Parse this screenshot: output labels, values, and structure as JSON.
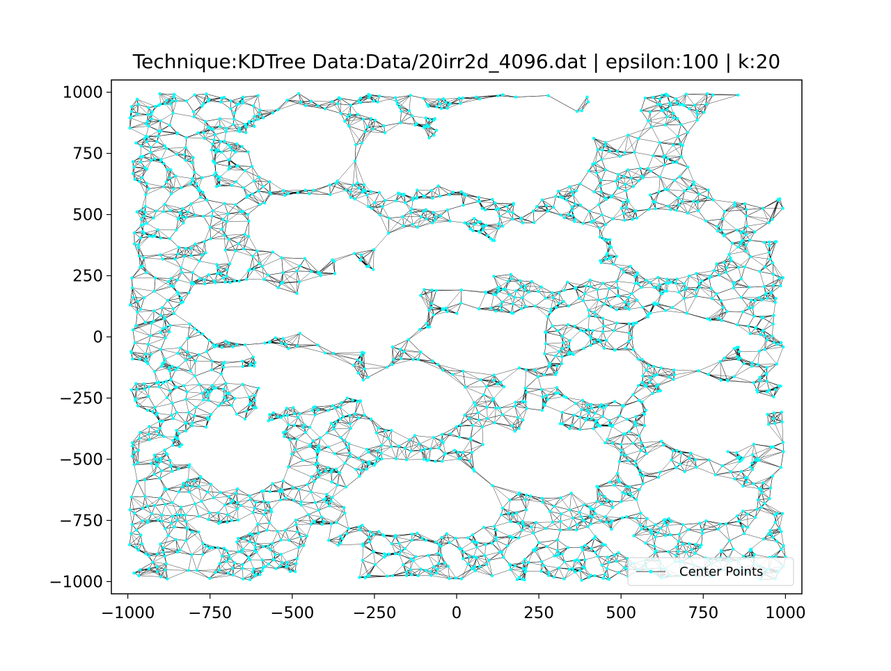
{
  "chart_data": {
    "type": "scatter",
    "title": "Technique:KDTree Data:Data/20irr2d_4096.dat | epsilon:100 | k:20",
    "xlabel": "",
    "ylabel": "",
    "xlim": [
      -1050,
      1050
    ],
    "ylim": [
      -1050,
      1050
    ],
    "xticks": [
      -1000,
      -750,
      -500,
      -250,
      0,
      250,
      500,
      750,
      1000
    ],
    "yticks": [
      -1000,
      -750,
      -500,
      -250,
      0,
      250,
      500,
      750,
      1000
    ],
    "xtick_labels": [
      "−1000",
      "−750",
      "−500",
      "−250",
      "0",
      "250",
      "500",
      "750",
      "1000"
    ],
    "ytick_labels": [
      "−1000",
      "−750",
      "−500",
      "−250",
      "0",
      "250",
      "500",
      "750",
      "1000"
    ],
    "grid": false,
    "legend": {
      "position": "lower-right",
      "entries": [
        "Center Points"
      ]
    },
    "series": [
      {
        "name": "Center Points",
        "marker_color": "#00ffff",
        "edge_color": "#000000",
        "point_count": 4096,
        "neighbors_k": 20,
        "sample_points": [
          [
            -980,
            380
          ],
          [
            -950,
            160
          ],
          [
            -900,
            720
          ],
          [
            -860,
            980
          ],
          [
            -800,
            920
          ],
          [
            -760,
            560
          ],
          [
            -720,
            860
          ],
          [
            -650,
            980
          ],
          [
            -600,
            300
          ],
          [
            -550,
            820
          ],
          [
            -460,
            600
          ],
          [
            -420,
            210
          ],
          [
            -380,
            880
          ],
          [
            -300,
            520
          ],
          [
            -240,
            960
          ],
          [
            -180,
            420
          ],
          [
            -120,
            600
          ],
          [
            -60,
            940
          ],
          [
            0,
            880
          ],
          [
            60,
            980
          ],
          [
            120,
            520
          ],
          [
            180,
            980
          ],
          [
            260,
            560
          ],
          [
            340,
            500
          ],
          [
            400,
            960
          ],
          [
            440,
            640
          ],
          [
            520,
            560
          ],
          [
            600,
            300
          ],
          [
            640,
            900
          ],
          [
            720,
            360
          ],
          [
            780,
            560
          ],
          [
            840,
            960
          ],
          [
            900,
            120
          ],
          [
            960,
            480
          ],
          [
            1000,
            800
          ],
          [
            -990,
            -60
          ],
          [
            -940,
            -300
          ],
          [
            -880,
            -480
          ],
          [
            -820,
            -780
          ],
          [
            -760,
            -60
          ],
          [
            -700,
            -260
          ],
          [
            -620,
            -960
          ],
          [
            -560,
            -600
          ],
          [
            -480,
            -860
          ],
          [
            -420,
            -220
          ],
          [
            -340,
            -720
          ],
          [
            -280,
            -320
          ],
          [
            -220,
            -900
          ],
          [
            -160,
            -60
          ],
          [
            -100,
            -500
          ],
          [
            -40,
            -260
          ],
          [
            20,
            -140
          ],
          [
            80,
            -440
          ],
          [
            140,
            -700
          ],
          [
            200,
            -990
          ],
          [
            260,
            -300
          ],
          [
            320,
            -600
          ],
          [
            380,
            -860
          ],
          [
            440,
            -140
          ],
          [
            500,
            -440
          ],
          [
            560,
            -720
          ],
          [
            620,
            -220
          ],
          [
            680,
            -520
          ],
          [
            740,
            -860
          ],
          [
            800,
            -300
          ],
          [
            860,
            -60
          ],
          [
            920,
            -620
          ],
          [
            980,
            -200
          ],
          [
            1000,
            -900
          ],
          [
            -360,
            -900
          ],
          [
            -980,
            -720
          ],
          [
            -900,
            -980
          ]
        ]
      }
    ]
  }
}
